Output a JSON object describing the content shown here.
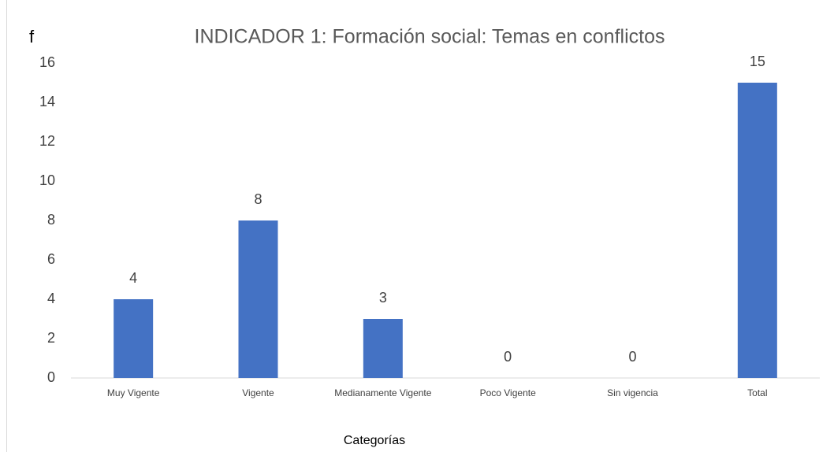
{
  "chart_data": {
    "type": "bar",
    "title": "INDICADOR 1: Formación social: Temas en conflictos",
    "y_label": "f",
    "x_label": "Categorías",
    "categories": [
      "Muy Vigente",
      "Vigente",
      "Medianamente Vigente",
      "Poco Vigente",
      "Sin vigencia",
      "Total"
    ],
    "values": [
      4,
      8,
      3,
      0,
      0,
      15
    ],
    "color": "#4472c4",
    "ylim": [
      0,
      16
    ],
    "yticks": [
      0,
      2,
      4,
      6,
      8,
      10,
      12,
      14,
      16
    ],
    "grid": false
  }
}
